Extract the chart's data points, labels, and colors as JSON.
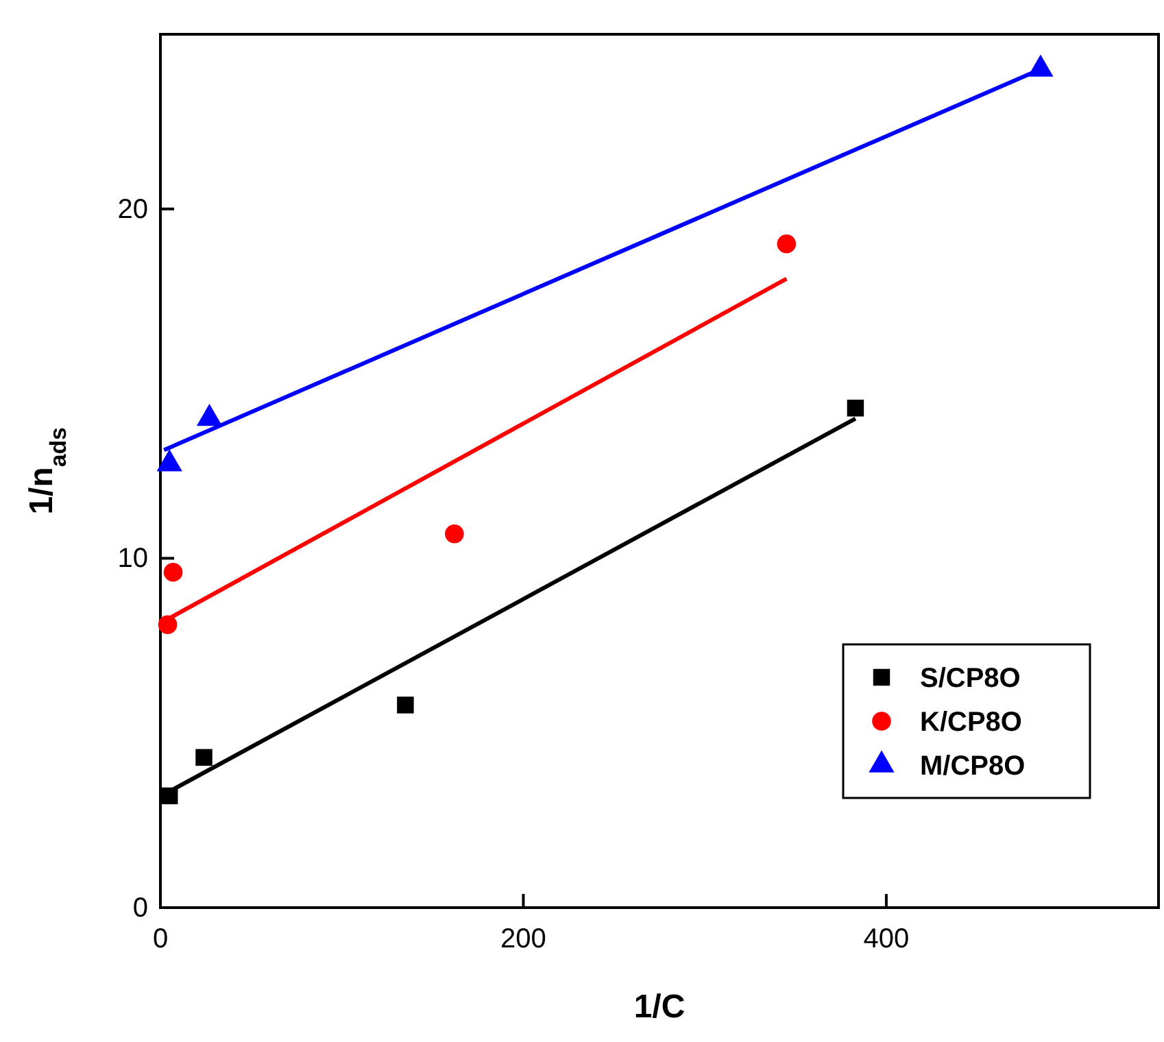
{
  "chart_data": {
    "type": "scatter",
    "xlabel": "1/C",
    "ylabel": "1/n$_{ads}$",
    "xlim": [
      0,
      550
    ],
    "ylim": [
      0,
      25
    ],
    "xticks": [
      0,
      200,
      400
    ],
    "yticks": [
      0,
      10,
      20
    ],
    "grid": false,
    "legend": "bottom right",
    "series": [
      {
        "name": "S/CP8O",
        "color": "#000000",
        "marker": "square",
        "x": [
          5,
          24,
          135,
          383
        ],
        "values": [
          3.2,
          4.3,
          5.8,
          14.3
        ]
      },
      {
        "name": "K/CP8O",
        "color": "#ff0000",
        "marker": "circle",
        "x": [
          4,
          7,
          162,
          345
        ],
        "values": [
          8.1,
          9.6,
          10.7,
          19.0
        ]
      },
      {
        "name": "M/CP8O",
        "color": "#0000ff",
        "marker": "triangle",
        "x": [
          5,
          27,
          485
        ],
        "values": [
          12.7,
          14.0,
          24.0
        ]
      },
      {
        "type": "line",
        "color": "#000000",
        "marker": "none",
        "x": [
          4,
          383
        ],
        "values": [
          3.3,
          14.0
        ]
      },
      {
        "type": "line",
        "color": "#ff0000",
        "marker": "none",
        "x": [
          2,
          345
        ],
        "values": [
          8.2,
          18.0
        ]
      },
      {
        "type": "line",
        "color": "#0000ff",
        "marker": "none",
        "x": [
          2,
          485
        ],
        "values": [
          13.1,
          24.0
        ]
      }
    ]
  }
}
